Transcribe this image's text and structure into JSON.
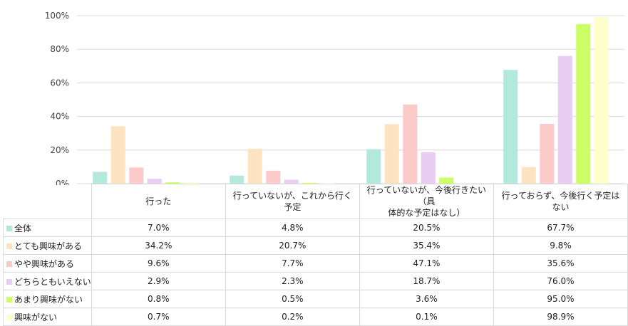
{
  "chart_data": {
    "type": "bar",
    "categories": [
      "行った",
      "行っていないが、これから行く予定",
      "行っていないが、今後行きたい（具体的な予定はなし）",
      "行っておらず、今後行く予定はない"
    ],
    "category_lines": [
      [
        "行った"
      ],
      [
        "行っていないが、これから行く予定"
      ],
      [
        "行っていないが、今後行きたい（具",
        "体的な予定はなし）"
      ],
      [
        "行っておらず、今後行く予定はない"
      ]
    ],
    "series": [
      {
        "name": "全体",
        "color": "#b3e8dd",
        "values": [
          7.0,
          4.8,
          20.5,
          67.7
        ],
        "labels": [
          "7.0%",
          "4.8%",
          "20.5%",
          "67.7%"
        ]
      },
      {
        "name": "とても興味がある",
        "color": "#fde3c0",
        "values": [
          34.2,
          20.7,
          35.4,
          9.8
        ],
        "labels": [
          "34.2%",
          "20.7%",
          "35.4%",
          "9.8%"
        ]
      },
      {
        "name": "やや興味がある",
        "color": "#fdcaca",
        "values": [
          9.6,
          7.7,
          47.1,
          35.6
        ],
        "labels": [
          "9.6%",
          "7.7%",
          "47.1%",
          "35.6%"
        ]
      },
      {
        "name": "どちらともいえない",
        "color": "#e8cdf5",
        "values": [
          2.9,
          2.3,
          18.7,
          76.0
        ],
        "labels": [
          "2.9%",
          "2.3%",
          "18.7%",
          "76.0%"
        ]
      },
      {
        "name": "あまり興味がない",
        "color": "#ccff66",
        "values": [
          0.8,
          0.5,
          3.6,
          95.0
        ],
        "labels": [
          "0.8%",
          "0.5%",
          "3.6%",
          "95.0%"
        ]
      },
      {
        "name": "興味がない",
        "color": "#ffffcc",
        "values": [
          0.7,
          0.2,
          0.1,
          98.9
        ],
        "labels": [
          "0.7%",
          "0.2%",
          "0.1%",
          "98.9%"
        ]
      }
    ],
    "yticks": [
      "0%",
      "20%",
      "40%",
      "60%",
      "80%",
      "100%"
    ],
    "ylim": [
      0,
      100
    ],
    "grid": true,
    "legend": "data-table"
  }
}
